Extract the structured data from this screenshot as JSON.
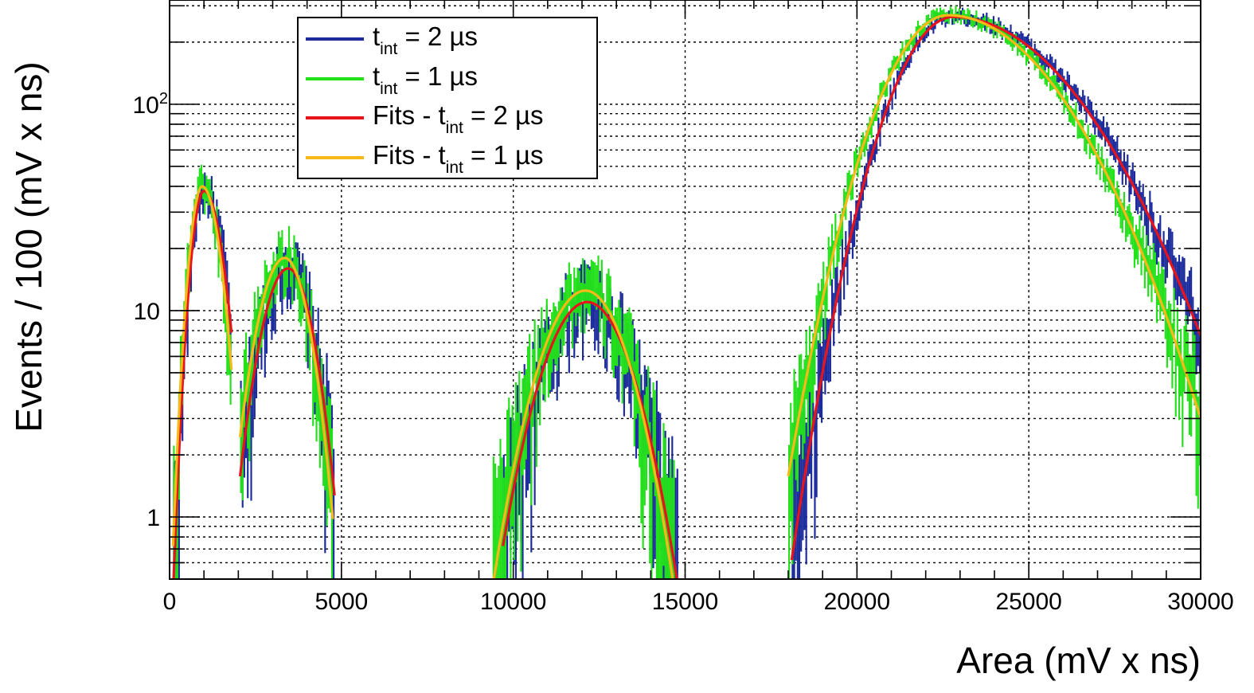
{
  "chart_data": {
    "type": "line",
    "title": "",
    "xlabel": "Area (mV x ns)",
    "ylabel": "Events / 100 (mV x ns)",
    "xlim": [
      0,
      30000
    ],
    "ylim": [
      0.5,
      320
    ],
    "y_scale": "log",
    "grid": true,
    "legend_position": "top-left",
    "x_ticks": [
      {
        "value": 0,
        "label": "0"
      },
      {
        "value": 5000,
        "label": "5000"
      },
      {
        "value": 10000,
        "label": "10000"
      },
      {
        "value": 15000,
        "label": "15000"
      },
      {
        "value": 20000,
        "label": "20000"
      },
      {
        "value": 25000,
        "label": "25000"
      },
      {
        "value": 30000,
        "label": "30000"
      }
    ],
    "y_ticks": [
      {
        "value": 1,
        "label": "1",
        "sup": ""
      },
      {
        "value": 10,
        "label": "10",
        "sup": ""
      },
      {
        "value": 100,
        "label": "10",
        "sup": "2"
      }
    ],
    "series": [
      {
        "name": "t_int = 2 µs",
        "legend_label": {
          "pre": "t",
          "sub": "int",
          "post": " = 2 µs"
        },
        "color": "#1b2b9c",
        "kind": "histogram",
        "peaks": [
          {
            "center": 1000,
            "height": 38,
            "sigma_left": 300,
            "sigma_right": 450,
            "x_range": [
              100,
              1800
            ]
          },
          {
            "center": 3450,
            "height": 16,
            "sigma_left": 650,
            "sigma_right": 600,
            "x_range": [
              2050,
              4800
            ]
          },
          {
            "center": 12150,
            "height": 11,
            "sigma_left": 1050,
            "sigma_right": 1050,
            "x_range": [
              9700,
              15000
            ]
          },
          {
            "center": 22800,
            "height": 265,
            "sigma_left": 1350,
            "sigma_right": 2700,
            "x_range": [
              18100,
              30000
            ]
          }
        ]
      },
      {
        "name": "t_int = 1 µs",
        "legend_label": {
          "pre": "t",
          "sub": "int",
          "post": " = 1 µs"
        },
        "color": "#22e01a",
        "kind": "histogram",
        "peaks": [
          {
            "center": 950,
            "height": 40,
            "sigma_left": 300,
            "sigma_right": 420,
            "x_range": [
              100,
              1800
            ]
          },
          {
            "center": 3350,
            "height": 18,
            "sigma_left": 650,
            "sigma_right": 580,
            "x_range": [
              2050,
              4750
            ]
          },
          {
            "center": 12100,
            "height": 12.5,
            "sigma_left": 1050,
            "sigma_right": 1000,
            "x_range": [
              9400,
              15000
            ]
          },
          {
            "center": 22650,
            "height": 270,
            "sigma_left": 1450,
            "sigma_right": 2450,
            "x_range": [
              18000,
              30000
            ]
          }
        ]
      },
      {
        "name": "Fits - t_int = 2 µs",
        "legend_label": {
          "pre": "Fits - t",
          "sub": "int",
          "post": " = 2 µs"
        },
        "color": "#e8141c",
        "kind": "fit",
        "peaks": [
          {
            "center": 1000,
            "height": 38,
            "sigma_left": 300,
            "sigma_right": 450,
            "x_range": [
              100,
              1800
            ]
          },
          {
            "center": 3450,
            "height": 16,
            "sigma_left": 650,
            "sigma_right": 600,
            "x_range": [
              2050,
              4800
            ]
          },
          {
            "center": 12150,
            "height": 11,
            "sigma_left": 1050,
            "sigma_right": 1050,
            "x_range": [
              9700,
              15000
            ]
          },
          {
            "center": 22800,
            "height": 265,
            "sigma_left": 1350,
            "sigma_right": 2700,
            "x_range": [
              18100,
              30000
            ]
          }
        ]
      },
      {
        "name": "Fits - t_int = 1 µs",
        "legend_label": {
          "pre": "Fits - t",
          "sub": "int",
          "post": " = 1 µs"
        },
        "color": "#f7b918",
        "kind": "fit",
        "peaks": [
          {
            "center": 950,
            "height": 40,
            "sigma_left": 300,
            "sigma_right": 420,
            "x_range": [
              100,
              1800
            ]
          },
          {
            "center": 3350,
            "height": 18,
            "sigma_left": 650,
            "sigma_right": 580,
            "x_range": [
              2050,
              4750
            ]
          },
          {
            "center": 12100,
            "height": 12.5,
            "sigma_left": 1050,
            "sigma_right": 1000,
            "x_range": [
              9400,
              15000
            ]
          },
          {
            "center": 22650,
            "height": 270,
            "sigma_left": 1450,
            "sigma_right": 2450,
            "x_range": [
              18000,
              30000
            ]
          }
        ]
      }
    ]
  }
}
